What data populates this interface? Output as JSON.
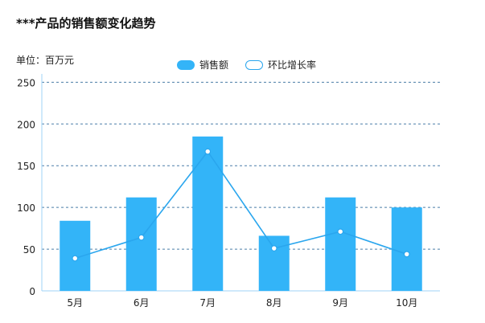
{
  "colors": {
    "bar": "#33b4f8",
    "line": "#2aa6ee",
    "grid": "#4a7da8",
    "axis": "#9fd3f7"
  },
  "chart_data": {
    "type": "bar",
    "title": "***产品的销售额变化趋势",
    "unit_label": "单位：百万元",
    "categories": [
      "5月",
      "6月",
      "7月",
      "8月",
      "9月",
      "10月"
    ],
    "ylim": [
      0,
      260
    ],
    "yticks": [
      0,
      50,
      100,
      150,
      200,
      250
    ],
    "grid": true,
    "legend_position": "top-center",
    "series": [
      {
        "name": "销售额",
        "type": "bar",
        "values": [
          84,
          112,
          185,
          66,
          112,
          100
        ]
      },
      {
        "name": "环比增长率",
        "type": "line",
        "values": [
          39,
          64,
          167,
          51,
          71,
          44
        ]
      }
    ]
  }
}
